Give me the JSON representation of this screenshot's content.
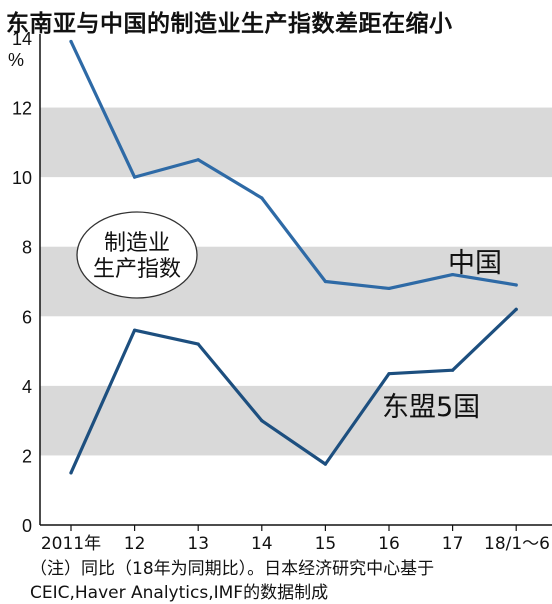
{
  "chart_data": {
    "type": "line",
    "title": "东南亚与中国的制造业生产指数差距在缩小",
    "unit": "%",
    "categories": [
      "2011年",
      "12",
      "13",
      "14",
      "15",
      "16",
      "17",
      "18/1～6"
    ],
    "series": [
      {
        "name": "中国",
        "values": [
          13.9,
          10.0,
          10.5,
          9.4,
          7.0,
          6.8,
          7.2,
          6.9
        ],
        "color": "#2e6aa6"
      },
      {
        "name": "东盟5国",
        "values": [
          1.5,
          5.6,
          5.2,
          3.0,
          1.75,
          4.35,
          4.45,
          6.2
        ],
        "color": "#1d4f7f"
      }
    ],
    "ylim": [
      0,
      14
    ],
    "yticks": [
      0,
      2,
      4,
      6,
      8,
      10,
      12,
      14
    ],
    "grid": "alternating gray bands",
    "annotation": "制造业生产指数",
    "notes": [
      "（注）同比（18年为同期比）。日本经济研究中心基于",
      "CEIC,Haver Analytics,IMF的数据制成"
    ]
  }
}
